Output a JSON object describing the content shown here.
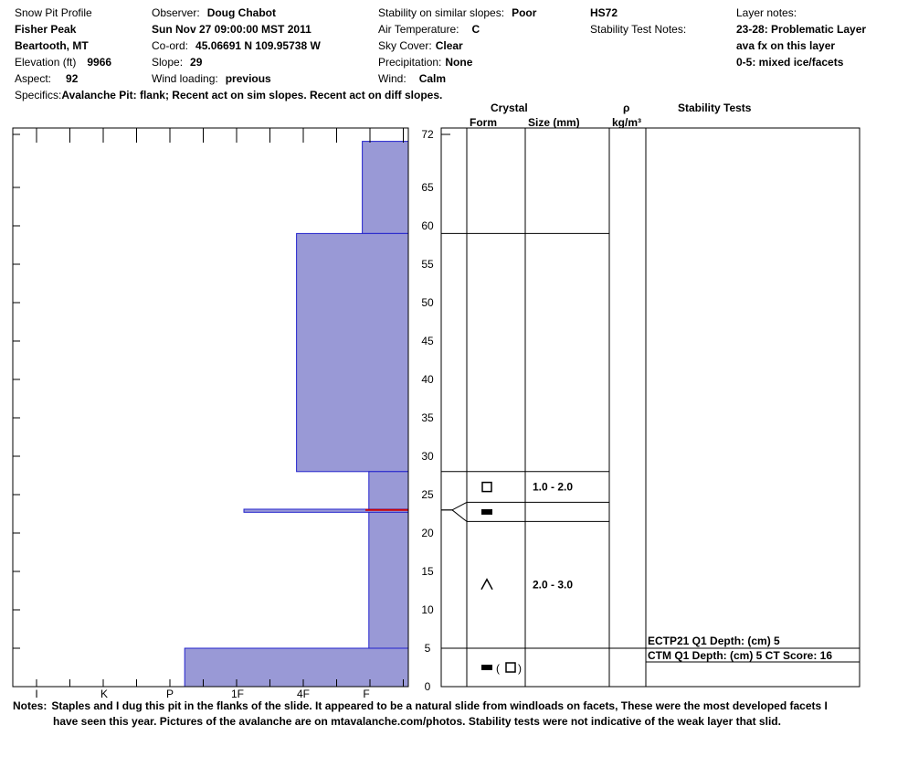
{
  "header": {
    "title": "Snow Pit Profile",
    "location": "Fisher Peak",
    "region": "Beartooth, MT",
    "elevation_label": "Elevation (ft)",
    "elevation_value": "9966",
    "aspect_label": "Aspect:",
    "aspect_value": "92",
    "specifics_label": "Specifics:",
    "specifics_value": "Avalanche Pit: flank; Recent act on sim slopes. Recent act on diff slopes.",
    "observer_label": "Observer:",
    "observer_value": "Doug Chabot",
    "datetime": "Sun Nov 27 09:00:00 MST 2011",
    "coord_label": "Co-ord:",
    "coord_value": "45.06691 N 109.95738 W",
    "slope_label": "Slope:",
    "slope_value": "29",
    "wind_loading_label": "Wind loading:",
    "wind_loading_value": "previous",
    "stability_label": "Stability on similar slopes:",
    "stability_value": "Poor",
    "air_temp_label": "Air Temperature:",
    "air_temp_value": "C",
    "sky_label": "Sky Cover:",
    "sky_value": "Clear",
    "precip_label": "Precipitation:",
    "precip_value": "None",
    "wind_label": "Wind:",
    "wind_value": "Calm",
    "hs": "HS72",
    "stability_notes_label": "Stability Test Notes:",
    "layer_notes_label": "Layer notes:",
    "layer_notes": [
      "23-28: Problematic Layer",
      "ava fx on this layer",
      "0-5: mixed ice/facets"
    ]
  },
  "columns": {
    "crystal": "Crystal",
    "form": "Form",
    "size": "Size (mm)",
    "rho": "ρ",
    "density_unit": "kg/m³",
    "stability_tests": "Stability Tests"
  },
  "chart_data": {
    "type": "bar",
    "title": "",
    "ylim": [
      0,
      72
    ],
    "yticks": [
      0,
      5,
      10,
      15,
      20,
      25,
      30,
      35,
      40,
      45,
      50,
      55,
      60,
      65,
      72
    ],
    "xlabel_ticks": [
      "I",
      "K",
      "P",
      "1F",
      "4F",
      "F"
    ],
    "x_scale_order": [
      "F",
      "4F",
      "1F",
      "P",
      "K",
      "I"
    ],
    "hardness_layers": [
      {
        "bottom": 59,
        "top": 71,
        "hardness": "F-",
        "hardness_index": 0.7
      },
      {
        "bottom": 28,
        "top": 59,
        "hardness": "4F+",
        "hardness_index": 1.7
      },
      {
        "bottom": 5,
        "top": 28,
        "hardness": "F",
        "hardness_index": 0.6
      },
      {
        "bottom": 22.7,
        "top": 23.1,
        "hardness": "1F-",
        "hardness_index": 2.5
      },
      {
        "bottom": 0,
        "top": 5,
        "hardness": "P",
        "hardness_index": 3.4
      }
    ],
    "weak_layer_depth": 23,
    "weak_layer_color": "#cc0000",
    "fill_color": "#9999d6",
    "edge_color": "#2222cc"
  },
  "layers": [
    {
      "top": 28,
      "bottom": 24,
      "form": "square",
      "size": "1.0 - 2.0"
    },
    {
      "top": 24,
      "bottom": 21.5,
      "form": "ice",
      "size": ""
    },
    {
      "top": 21.5,
      "bottom": 5,
      "form": "depth-hoar",
      "size": "2.0 - 3.0"
    },
    {
      "top": 5,
      "bottom": 0,
      "form": "ice-square",
      "size": ""
    }
  ],
  "layer_boundaries": [
    59,
    28,
    24,
    21.5,
    5
  ],
  "stability_tests": [
    {
      "text": "ECTP21 Q1 Depth: (cm) 5",
      "depth": 5
    },
    {
      "text": "CTM Q1 Depth: (cm) 5 CT Score: 16",
      "depth": 3.2
    }
  ],
  "notes_label": "Notes:",
  "notes_line1": "Staples and I dug this pit in the flanks of the slide.  It appeared to be a natural slide from windloads on facets,  These were the most developed facets I",
  "notes_line2": "have seen this year.  Pictures of the avalanche are on mtavalanche.com/photos. Stability tests were not indicative of the weak layer that slid."
}
